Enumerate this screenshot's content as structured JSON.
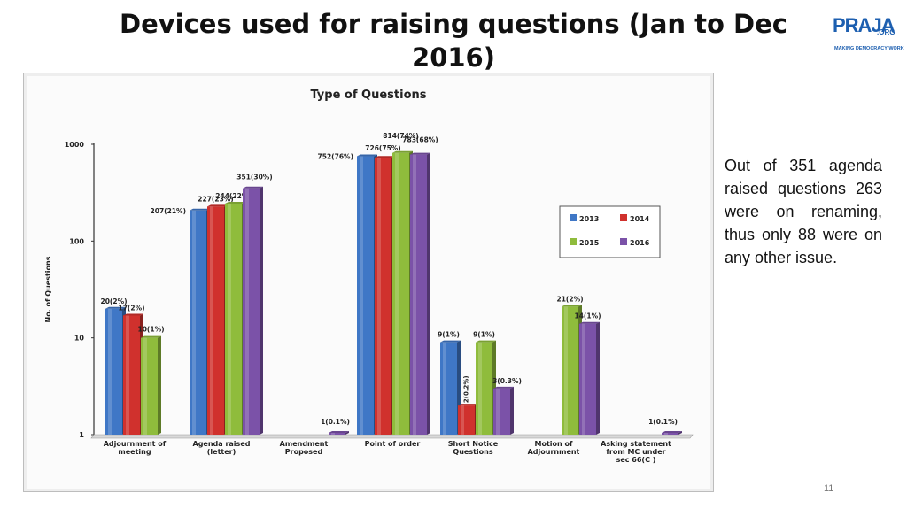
{
  "slide": {
    "title": "Devices used for raising questions (Jan to Dec 2016)",
    "logo": {
      "word": "PRAJA",
      "suffix": ".ORG",
      "tagline": "MAKING DEMOCRACY WORK"
    },
    "note": "Out of 351 agenda raised questions 263 were on renaming, thus only 88 were on any other issue.",
    "page_number": "11"
  },
  "colors": {
    "2013": "#3f77c6",
    "2014": "#d0312d",
    "2015": "#8fbc3c",
    "2016": "#7b52a8",
    "title": "#111111"
  },
  "chart_data": {
    "type": "bar",
    "title": "Type of Questions",
    "ylabel": "No. of Questions",
    "yscale": "log",
    "ylim": [
      1,
      1000
    ],
    "yticks": [
      "1",
      "10",
      "100",
      "1000"
    ],
    "legend": "right",
    "categories": [
      "Adjournment of meeting",
      "Agenda raised (letter)",
      "Amendment Proposed",
      "Point of order",
      "Short Notice Questions",
      "Motion of Adjournment",
      "Asking statement from MC under sec 66(C )"
    ],
    "series": [
      {
        "name": "2013",
        "values": [
          20,
          207,
          null,
          752,
          9,
          null,
          null
        ],
        "labels": [
          "20(2%)",
          "207(21%)",
          "",
          "752(76%)",
          "9(1%)",
          "",
          ""
        ]
      },
      {
        "name": "2014",
        "values": [
          17,
          227,
          null,
          726,
          2,
          null,
          null
        ],
        "labels": [
          "17(2%)",
          "227(23%)",
          "",
          "726(75%)",
          "2(0.2%)",
          "",
          ""
        ]
      },
      {
        "name": "2015",
        "values": [
          10,
          244,
          null,
          814,
          9,
          21,
          null
        ],
        "labels": [
          "10(1%)",
          "244(22%)",
          "",
          "814(74%)",
          "9(1%)",
          "21(2%)",
          ""
        ]
      },
      {
        "name": "2016",
        "values": [
          null,
          351,
          1,
          783,
          3,
          14,
          1
        ],
        "labels": [
          "",
          "351(30%)",
          "1(0.1%)",
          "783(68%)",
          "3(0.3%)",
          "14(1%)",
          "1(0.1%)"
        ]
      }
    ]
  }
}
